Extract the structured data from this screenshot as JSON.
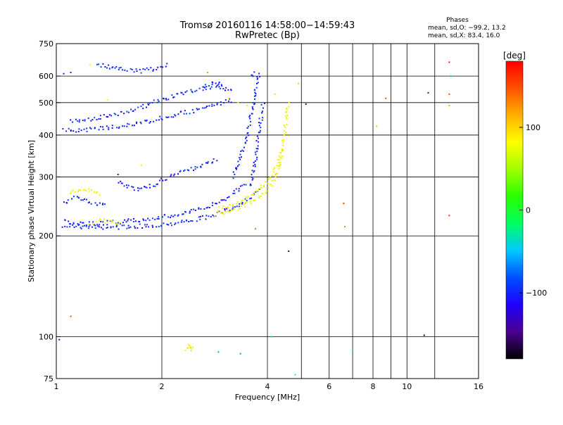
{
  "chart_data": {
    "type": "scatter",
    "title": "Tromsø 20160116 14:58:00−14:59:43",
    "subtitle": "RwPretec (Bp)",
    "xlabel": "Frequency [MHz]",
    "ylabel": "Stationary phase Virtual Height [km]",
    "x_scale": "log",
    "y_scale": "log",
    "xlim": [
      1,
      16
    ],
    "ylim": [
      75,
      750
    ],
    "x_ticks": [
      1,
      2,
      4,
      6,
      8,
      10,
      16
    ],
    "x_tick_labels": [
      "1",
      "2",
      "4",
      "6",
      "8",
      "10",
      "16"
    ],
    "y_ticks": [
      75,
      100,
      200,
      300,
      400,
      500,
      600,
      750
    ],
    "y_tick_labels": [
      "75",
      "100",
      "200",
      "300",
      "400",
      "500",
      "600",
      "750"
    ],
    "x_gridlines": [
      2,
      4,
      5,
      6,
      7,
      8,
      9,
      10,
      12
    ],
    "y_gridlines": [
      100,
      200,
      300,
      400,
      500,
      600
    ],
    "grid": true,
    "info_box": {
      "heading": "Phases",
      "line1": "mean, sd,O: −99.2, 13.2",
      "line2": "mean, sd,X:  83.4, 16.0"
    },
    "colorbar": {
      "label": "[deg]",
      "range": [
        -180,
        180
      ],
      "ticks": [
        100,
        0,
        -100
      ],
      "tick_labels": [
        "100",
        "0",
        "−100"
      ],
      "colors": [
        "#000000",
        "#4a0090",
        "#1e00ff",
        "#0050ff",
        "#00c8ff",
        "#00ff60",
        "#28ff00",
        "#a0ff00",
        "#ffff00",
        "#ffb000",
        "#ff5000",
        "#ff0000"
      ]
    },
    "series": [
      {
        "mode": "O",
        "phase": -100,
        "traces": [
          {
            "x": [
              1.05,
              1.15,
              1.25,
              1.4,
              1.6,
              1.8,
              2.0,
              2.2,
              2.4,
              2.6,
              2.8,
              3.0,
              3.2,
              3.4,
              3.6,
              3.8
            ],
            "y": [
              215,
              213,
              212,
              212,
              213,
              214,
              216,
              219,
              222,
              226,
              230,
              236,
              243,
              252,
              262,
              275
            ]
          },
          {
            "x": [
              1.05,
              1.1,
              1.2,
              1.3,
              1.5,
              1.7,
              1.9,
              2.1,
              2.3,
              2.5,
              2.7,
              2.9,
              3.1,
              3.3,
              3.5
            ],
            "y": [
              220,
              218,
              217,
              218,
              220,
              223,
              226,
              229,
              233,
              238,
              245,
              253,
              262,
              275,
              290
            ]
          },
          {
            "x": [
              3.2,
              3.3,
              3.4,
              3.5,
              3.55,
              3.6,
              3.65,
              3.7,
              3.75,
              3.8
            ],
            "y": [
              300,
              330,
              360,
              400,
              430,
              460,
              500,
              540,
              580,
              620
            ]
          },
          {
            "x": [
              3.6,
              3.65,
              3.7,
              3.75,
              3.8,
              3.85,
              3.9
            ],
            "y": [
              280,
              310,
              340,
              380,
              420,
              460,
              500
            ]
          },
          {
            "x": [
              1.05,
              1.2,
              1.4,
              1.6,
              1.8,
              2.0,
              2.2,
              2.4,
              2.6,
              2.8,
              3.0,
              3.2
            ],
            "y": [
              412,
              415,
              420,
              428,
              438,
              450,
              460,
              470,
              480,
              490,
              500,
              510
            ]
          },
          {
            "x": [
              1.1,
              1.2,
              1.3,
              1.4,
              1.6,
              1.8,
              2.0,
              2.2,
              2.4,
              2.6,
              2.8,
              3.0
            ],
            "y": [
              440,
              445,
              450,
              455,
              470,
              490,
              510,
              525,
              540,
              550,
              560,
              570
            ]
          },
          {
            "x": [
              1.5,
              1.6,
              1.7,
              1.8,
              1.9,
              2.0,
              2.1,
              2.3,
              2.5,
              2.7,
              2.9
            ],
            "y": [
              290,
              280,
              275,
              278,
              285,
              293,
              300,
              310,
              320,
              330,
              340
            ]
          },
          {
            "x": [
              1.05,
              1.1,
              1.15,
              1.2,
              1.3,
              1.4
            ],
            "y": [
              250,
              258,
              262,
              255,
              250,
              248
            ]
          },
          {
            "x": [
              1.3,
              1.4,
              1.5,
              1.6,
              1.7,
              1.8,
              1.9,
              2.0,
              2.1
            ],
            "y": [
              650,
              640,
              630,
              625,
              620,
              625,
              630,
              640,
              650
            ]
          },
          {
            "x": [
              2.6,
              2.7,
              2.8,
              2.9,
              3.0,
              3.1,
              3.2
            ],
            "y": [
              560,
              565,
              570,
              560,
              550,
              545,
              540
            ]
          },
          {
            "x": [
              3.6,
              3.65,
              3.7
            ],
            "y": [
              600,
              610,
              620
            ]
          }
        ]
      },
      {
        "mode": "X",
        "phase": 83,
        "traces": [
          {
            "x": [
              2.85,
              3.0,
              3.2,
              3.4,
              3.6,
              3.8,
              4.0,
              4.2,
              4.3,
              4.4,
              4.45,
              4.5,
              4.55,
              4.6
            ],
            "y": [
              232,
              236,
              240,
              246,
              253,
              262,
              275,
              295,
              320,
              350,
              390,
              430,
              470,
              500
            ]
          },
          {
            "x": [
              2.9,
              3.1,
              3.3,
              3.5,
              3.7,
              3.9,
              4.1,
              4.3,
              4.4
            ],
            "y": [
              240,
              246,
              252,
              260,
              270,
              282,
              300,
              330,
              360
            ]
          },
          {
            "x": [
              1.1,
              1.15,
              1.2,
              1.3,
              1.35
            ],
            "y": [
              268,
              272,
              275,
              270,
              266
            ]
          },
          {
            "x": [
              1.25,
              1.35,
              1.45,
              1.55
            ],
            "y": [
              218,
              222,
              220,
              216
            ]
          },
          {
            "x": [
              2.35,
              2.38,
              2.42,
              2.45
            ],
            "y": [
              92,
              95,
              91,
              93
            ]
          }
        ]
      }
    ],
    "scattered_points": [
      {
        "x": 1.05,
        "y": 610,
        "phase": -100
      },
      {
        "x": 1.1,
        "y": 615,
        "phase": -100
      },
      {
        "x": 1.25,
        "y": 650,
        "phase": 80
      },
      {
        "x": 1.5,
        "y": 305,
        "phase": -110
      },
      {
        "x": 1.4,
        "y": 510,
        "phase": 80
      },
      {
        "x": 1.75,
        "y": 325,
        "phase": 90
      },
      {
        "x": 2.7,
        "y": 615,
        "phase": 20
      },
      {
        "x": 3.1,
        "y": 515,
        "phase": 80
      },
      {
        "x": 3.3,
        "y": 500,
        "phase": 75
      },
      {
        "x": 3.7,
        "y": 210,
        "phase": 140
      },
      {
        "x": 3.5,
        "y": 490,
        "phase": 90
      },
      {
        "x": 4.2,
        "y": 530,
        "phase": 100
      },
      {
        "x": 4.6,
        "y": 180,
        "phase": -150
      },
      {
        "x": 4.9,
        "y": 570,
        "phase": 100
      },
      {
        "x": 5.15,
        "y": 495,
        "phase": -160
      },
      {
        "x": 4.1,
        "y": 100,
        "phase": -40
      },
      {
        "x": 1.02,
        "y": 98,
        "phase": -130
      },
      {
        "x": 1.1,
        "y": 115,
        "phase": 150
      },
      {
        "x": 2.45,
        "y": 93,
        "phase": 70
      },
      {
        "x": 2.9,
        "y": 90,
        "phase": -60
      },
      {
        "x": 3.35,
        "y": 89,
        "phase": -60
      },
      {
        "x": 4.8,
        "y": 77,
        "phase": -10
      },
      {
        "x": 6.6,
        "y": 250,
        "phase": 160
      },
      {
        "x": 6.65,
        "y": 213,
        "phase": 130
      },
      {
        "x": 7.0,
        "y": 91,
        "phase": -20
      },
      {
        "x": 8.2,
        "y": 425,
        "phase": 110
      },
      {
        "x": 8.7,
        "y": 515,
        "phase": 150
      },
      {
        "x": 11.5,
        "y": 535,
        "phase": -150
      },
      {
        "x": 11.2,
        "y": 101,
        "phase": -170
      },
      {
        "x": 13.2,
        "y": 660,
        "phase": 170
      },
      {
        "x": 13.3,
        "y": 600,
        "phase": -50
      },
      {
        "x": 13.2,
        "y": 530,
        "phase": 150
      },
      {
        "x": 13.2,
        "y": 490,
        "phase": 110
      },
      {
        "x": 13.2,
        "y": 230,
        "phase": 160
      }
    ]
  }
}
